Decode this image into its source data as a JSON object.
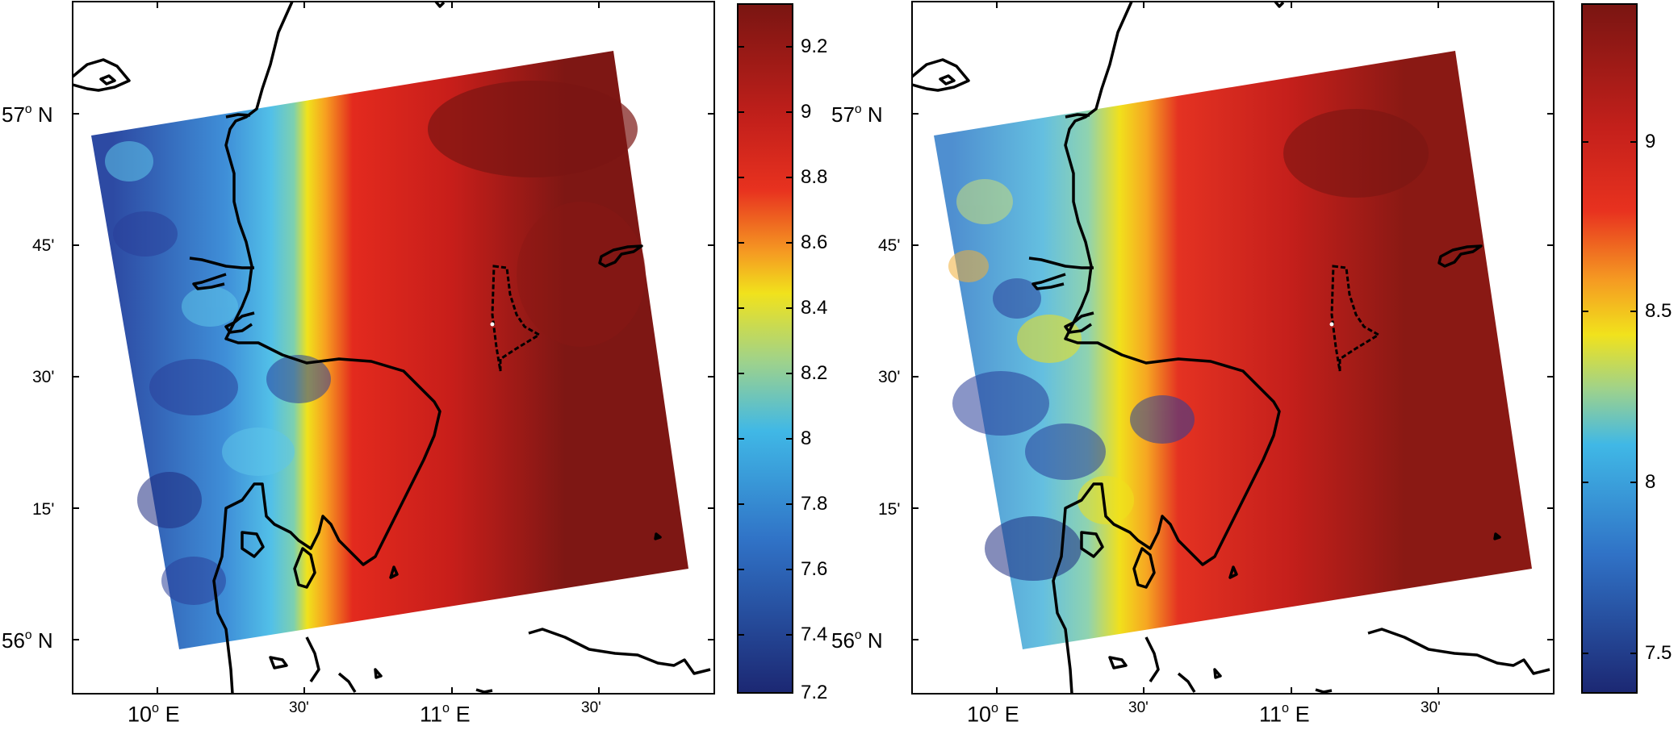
{
  "left": {
    "lat_labels": {
      "57": "57",
      "56": "56",
      "unit": "N",
      "m45": "45'",
      "m30": "30'",
      "m15": "15'"
    },
    "lon_labels": {
      "10": "10",
      "11": "11",
      "unit": "E",
      "m30a": "30'",
      "m30b": "30'"
    },
    "colorbar": {
      "ticks": [
        "9.2",
        "9",
        "8.8",
        "8.6",
        "8.4",
        "8.2",
        "8",
        "7.8",
        "7.6",
        "7.4",
        "7.2"
      ]
    }
  },
  "right": {
    "lat_labels": {
      "57": "57",
      "56": "56",
      "unit": "N",
      "m45": "45'",
      "m30": "30'",
      "m15": "15'"
    },
    "lon_labels": {
      "10": "10",
      "11": "11",
      "unit": "E",
      "m30a": "30'",
      "m30b": "30'"
    },
    "colorbar": {
      "ticks": [
        "9",
        "8.5",
        "8",
        "7.5"
      ]
    }
  },
  "colors": {
    "dark_red": "#7a1512",
    "red": "#e0281e",
    "yellow": "#f2e21a",
    "cyan": "#3fb6e6",
    "blue": "#2f4aa8",
    "navy": "#1d2a78"
  }
}
